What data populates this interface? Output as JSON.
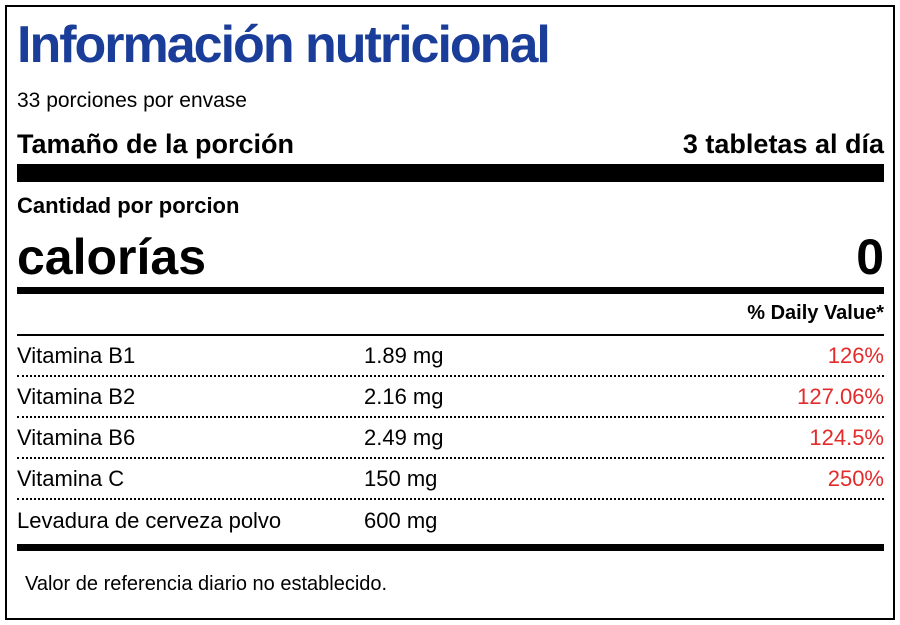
{
  "colors": {
    "title": "#1a3d99",
    "daily_value": "#e32b2b"
  },
  "title": "Información nutricional",
  "servings_per_container": "33 porciones por envase",
  "serving_size": {
    "label": "Tamaño de la porción",
    "value": "3 tabletas al día"
  },
  "amount_per_serving": "Cantidad por porcion",
  "calories": {
    "label": "calorías",
    "value": "0"
  },
  "daily_value_header": "% Daily Value*",
  "nutrients": [
    {
      "name": "Vitamina B1",
      "amount": "1.89 mg",
      "dv": "126%"
    },
    {
      "name": "Vitamina B2",
      "amount": "2.16 mg",
      "dv": "127.06%"
    },
    {
      "name": "Vitamina B6",
      "amount": "2.49 mg",
      "dv": "124.5%"
    },
    {
      "name": "Vitamina C",
      "amount": "150 mg",
      "dv": "250%"
    },
    {
      "name": "Levadura de cerveza polvo",
      "amount": "600 mg",
      "dv": ""
    }
  ],
  "footnote": "Valor de referencia diario no establecido."
}
